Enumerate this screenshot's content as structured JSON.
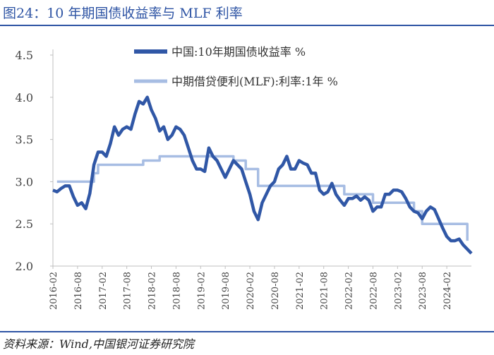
{
  "header": {
    "title": "图24：10 年期国债收益率与 MLF 利率"
  },
  "footer": {
    "source": "资料来源：Wind,中国银河证券研究院"
  },
  "chart_data": {
    "type": "line",
    "title": "",
    "xlabel": "",
    "ylabel": "",
    "ylim": [
      2.0,
      4.5
    ],
    "yticks": [
      "2.0",
      "2.5",
      "3.0",
      "3.5",
      "4.0",
      "4.5"
    ],
    "xlim": [
      "2016-02",
      "2024-08"
    ],
    "xticks": [
      "2016-02",
      "2016-08",
      "2017-02",
      "2017-08",
      "2018-02",
      "2018-08",
      "2019-02",
      "2019-08",
      "2020-02",
      "2020-08",
      "2021-02",
      "2021-08",
      "2022-02",
      "2022-08",
      "2023-02",
      "2023-08",
      "2024-02"
    ],
    "legend_position": "top",
    "series": [
      {
        "name": "中国:10年期国债收益率 %",
        "color": "#3057a6",
        "points": [
          [
            "2016-02",
            2.9
          ],
          [
            "2016-03",
            2.88
          ],
          [
            "2016-04",
            2.92
          ],
          [
            "2016-05",
            2.95
          ],
          [
            "2016-06",
            2.95
          ],
          [
            "2016-07",
            2.82
          ],
          [
            "2016-08",
            2.72
          ],
          [
            "2016-09",
            2.75
          ],
          [
            "2016-10",
            2.68
          ],
          [
            "2016-11",
            2.86
          ],
          [
            "2016-12",
            3.2
          ],
          [
            "2017-01",
            3.35
          ],
          [
            "2017-02",
            3.35
          ],
          [
            "2017-03",
            3.3
          ],
          [
            "2017-04",
            3.45
          ],
          [
            "2017-05",
            3.65
          ],
          [
            "2017-06",
            3.55
          ],
          [
            "2017-07",
            3.62
          ],
          [
            "2017-08",
            3.65
          ],
          [
            "2017-09",
            3.62
          ],
          [
            "2017-10",
            3.8
          ],
          [
            "2017-11",
            3.95
          ],
          [
            "2017-12",
            3.92
          ],
          [
            "2018-01",
            4.0
          ],
          [
            "2018-02",
            3.85
          ],
          [
            "2018-03",
            3.75
          ],
          [
            "2018-04",
            3.6
          ],
          [
            "2018-05",
            3.65
          ],
          [
            "2018-06",
            3.5
          ],
          [
            "2018-07",
            3.55
          ],
          [
            "2018-08",
            3.65
          ],
          [
            "2018-09",
            3.62
          ],
          [
            "2018-10",
            3.55
          ],
          [
            "2018-11",
            3.4
          ],
          [
            "2018-12",
            3.25
          ],
          [
            "2019-01",
            3.15
          ],
          [
            "2019-02",
            3.15
          ],
          [
            "2019-03",
            3.12
          ],
          [
            "2019-04",
            3.4
          ],
          [
            "2019-05",
            3.3
          ],
          [
            "2019-06",
            3.25
          ],
          [
            "2019-07",
            3.15
          ],
          [
            "2019-08",
            3.05
          ],
          [
            "2019-09",
            3.15
          ],
          [
            "2019-10",
            3.25
          ],
          [
            "2019-11",
            3.2
          ],
          [
            "2019-12",
            3.15
          ],
          [
            "2020-01",
            3.0
          ],
          [
            "2020-02",
            2.85
          ],
          [
            "2020-03",
            2.65
          ],
          [
            "2020-04",
            2.55
          ],
          [
            "2020-05",
            2.75
          ],
          [
            "2020-06",
            2.85
          ],
          [
            "2020-07",
            2.95
          ],
          [
            "2020-08",
            3.0
          ],
          [
            "2020-09",
            3.15
          ],
          [
            "2020-10",
            3.2
          ],
          [
            "2020-11",
            3.3
          ],
          [
            "2020-12",
            3.15
          ],
          [
            "2021-01",
            3.15
          ],
          [
            "2021-02",
            3.25
          ],
          [
            "2021-03",
            3.22
          ],
          [
            "2021-04",
            3.2
          ],
          [
            "2021-05",
            3.1
          ],
          [
            "2021-06",
            3.1
          ],
          [
            "2021-07",
            2.9
          ],
          [
            "2021-08",
            2.85
          ],
          [
            "2021-09",
            2.88
          ],
          [
            "2021-10",
            2.98
          ],
          [
            "2021-11",
            2.85
          ],
          [
            "2021-12",
            2.78
          ],
          [
            "2022-01",
            2.72
          ],
          [
            "2022-02",
            2.8
          ],
          [
            "2022-03",
            2.8
          ],
          [
            "2022-04",
            2.83
          ],
          [
            "2022-05",
            2.78
          ],
          [
            "2022-06",
            2.82
          ],
          [
            "2022-07",
            2.78
          ],
          [
            "2022-08",
            2.65
          ],
          [
            "2022-09",
            2.7
          ],
          [
            "2022-10",
            2.7
          ],
          [
            "2022-11",
            2.85
          ],
          [
            "2022-12",
            2.85
          ],
          [
            "2023-01",
            2.9
          ],
          [
            "2023-02",
            2.9
          ],
          [
            "2023-03",
            2.88
          ],
          [
            "2023-04",
            2.8
          ],
          [
            "2023-05",
            2.7
          ],
          [
            "2023-06",
            2.65
          ],
          [
            "2023-07",
            2.63
          ],
          [
            "2023-08",
            2.56
          ],
          [
            "2023-09",
            2.65
          ],
          [
            "2023-10",
            2.7
          ],
          [
            "2023-11",
            2.67
          ],
          [
            "2023-12",
            2.56
          ],
          [
            "2024-01",
            2.45
          ],
          [
            "2024-02",
            2.35
          ],
          [
            "2024-03",
            2.3
          ],
          [
            "2024-04",
            2.3
          ],
          [
            "2024-05",
            2.32
          ],
          [
            "2024-06",
            2.25
          ],
          [
            "2024-07",
            2.2
          ],
          [
            "2024-08",
            2.15
          ]
        ]
      },
      {
        "name": "中期借贷便利(MLF):利率:1年 %",
        "color": "#a7bde3",
        "points": [
          [
            "2016-03",
            3.0
          ],
          [
            "2016-12",
            3.0
          ],
          [
            "2016-12",
            3.1
          ],
          [
            "2017-01",
            3.1
          ],
          [
            "2017-01",
            3.2
          ],
          [
            "2017-12",
            3.2
          ],
          [
            "2017-12",
            3.25
          ],
          [
            "2018-04",
            3.25
          ],
          [
            "2018-04",
            3.3
          ],
          [
            "2019-10",
            3.3
          ],
          [
            "2019-10",
            3.25
          ],
          [
            "2020-01",
            3.25
          ],
          [
            "2020-01",
            3.15
          ],
          [
            "2020-04",
            3.15
          ],
          [
            "2020-04",
            2.95
          ],
          [
            "2022-01",
            2.95
          ],
          [
            "2022-01",
            2.85
          ],
          [
            "2022-08",
            2.85
          ],
          [
            "2022-08",
            2.75
          ],
          [
            "2023-06",
            2.75
          ],
          [
            "2023-06",
            2.65
          ],
          [
            "2023-08",
            2.65
          ],
          [
            "2023-08",
            2.5
          ],
          [
            "2024-07",
            2.5
          ],
          [
            "2024-07",
            2.3
          ]
        ]
      }
    ]
  }
}
